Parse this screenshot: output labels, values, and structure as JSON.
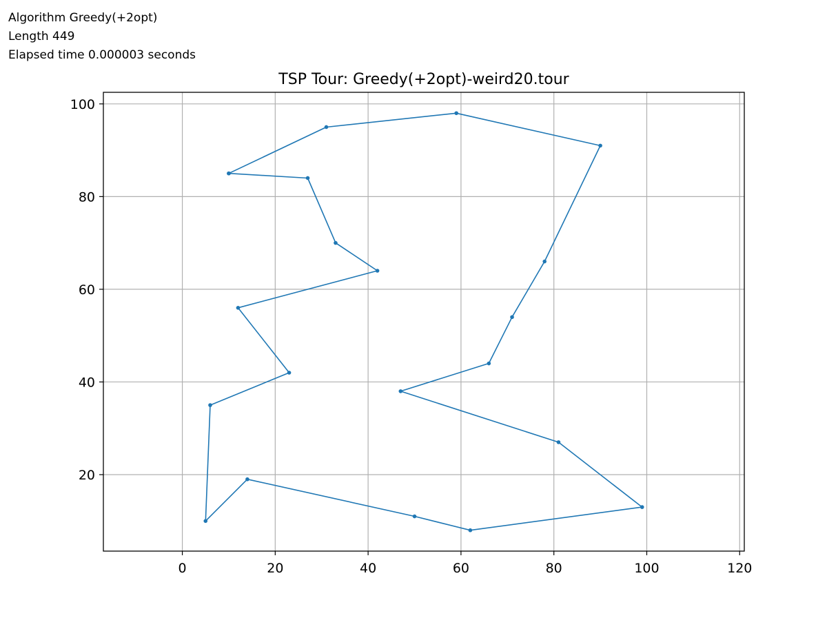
{
  "info": {
    "algorithm": "Algorithm Greedy(+2opt)",
    "length": "Length 449",
    "elapsed": "Elapsed time 0.000003 seconds"
  },
  "colors": {
    "line": "#1f77b4",
    "grid": "#b0b0b0",
    "axes": "#000000"
  },
  "chart_data": {
    "type": "line",
    "title": "TSP Tour: Greedy(+2opt)-weird20.tour",
    "xlabel": "",
    "ylabel": "",
    "xlim": [
      -17,
      121
    ],
    "ylim": [
      3.5,
      102.5
    ],
    "xticks": [
      0,
      20,
      40,
      60,
      80,
      100,
      120
    ],
    "yticks": [
      20,
      40,
      60,
      80,
      100
    ],
    "grid": true,
    "series": [
      {
        "x": [
          10,
          31,
          59,
          90,
          78,
          71,
          66,
          47,
          81,
          99,
          62,
          50,
          14,
          5,
          6,
          23,
          12,
          42,
          33,
          27,
          10
        ],
        "y": [
          85,
          95,
          98,
          91,
          66,
          54,
          44,
          38,
          27,
          13,
          8,
          11,
          19,
          10,
          35,
          42,
          56,
          64,
          70,
          84,
          85
        ]
      }
    ]
  }
}
